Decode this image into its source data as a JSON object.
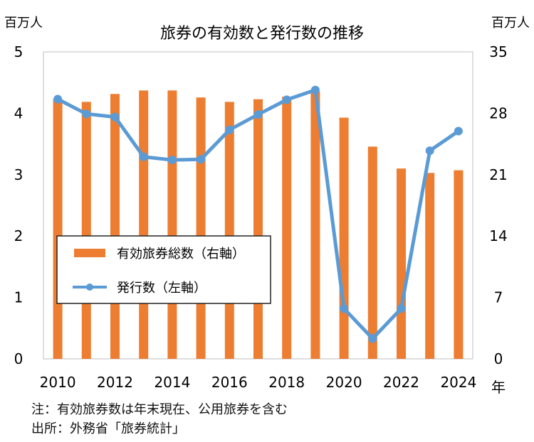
{
  "chart_data": {
    "type": "bar+line",
    "title": "旅券の有効数と発行数の推移",
    "left_unit": "百万人",
    "right_unit": "百万人",
    "x_unit": "年",
    "x": [
      2010,
      2011,
      2012,
      2013,
      2014,
      2015,
      2016,
      2017,
      2018,
      2019,
      2020,
      2021,
      2022,
      2023,
      2024
    ],
    "x_ticks": [
      "2010",
      "2012",
      "2014",
      "2016",
      "2018",
      "2020",
      "2022",
      "2024"
    ],
    "left_axis": {
      "ylim": [
        0,
        5
      ],
      "ticks": [
        "0",
        "1",
        "2",
        "3",
        "4",
        "5"
      ]
    },
    "right_axis": {
      "ylim": [
        0,
        35
      ],
      "ticks": [
        "0",
        "7",
        "14",
        "21",
        "28",
        "35"
      ]
    },
    "series": [
      {
        "name": "有効旅券総数（右軸）",
        "type": "bar",
        "axis": "right",
        "color": "#ED7D31",
        "values": [
          29.6,
          29.3,
          30.2,
          30.6,
          30.6,
          29.8,
          29.3,
          29.6,
          29.9,
          30.5,
          27.5,
          24.2,
          21.7,
          21.2,
          21.5
        ]
      },
      {
        "name": "発行数（左軸）",
        "type": "line",
        "axis": "left",
        "color": "#5B9BD5",
        "values": [
          4.23,
          3.99,
          3.94,
          3.29,
          3.24,
          3.25,
          3.73,
          3.98,
          4.22,
          4.38,
          0.82,
          0.33,
          0.82,
          3.39,
          3.71
        ]
      }
    ],
    "legend_position": "lower-left",
    "grid": false
  },
  "notes": [
    "注：有効旅券数は年末現在、公用旅券を含む",
    "出所：外務省「旅券統計」"
  ]
}
